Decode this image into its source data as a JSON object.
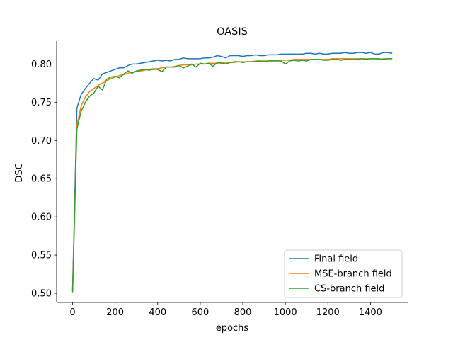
{
  "chart_data": {
    "type": "line",
    "title": "OASIS",
    "xlabel": "epochs",
    "ylabel": "DSC",
    "xlim": [
      -75,
      1575
    ],
    "ylim": [
      0.488,
      0.83
    ],
    "xticks": [
      0,
      200,
      400,
      600,
      800,
      1000,
      1200,
      1400
    ],
    "yticks": [
      0.5,
      0.55,
      0.6,
      0.65,
      0.7,
      0.75,
      0.8
    ],
    "ytick_labels": [
      "0.50",
      "0.55",
      "0.60",
      "0.65",
      "0.70",
      "0.75",
      "0.80"
    ],
    "grid": false,
    "legend_position": "lower-right",
    "series": [
      {
        "name": "Final field",
        "color": "#1f77b4",
        "x": [
          0,
          20,
          40,
          60,
          80,
          100,
          120,
          140,
          160,
          180,
          200,
          220,
          240,
          260,
          280,
          300,
          320,
          340,
          360,
          380,
          400,
          420,
          440,
          460,
          480,
          500,
          520,
          540,
          560,
          580,
          600,
          620,
          640,
          660,
          680,
          700,
          720,
          740,
          760,
          780,
          800,
          820,
          840,
          860,
          880,
          900,
          920,
          940,
          960,
          980,
          1000,
          1020,
          1040,
          1060,
          1080,
          1100,
          1120,
          1140,
          1160,
          1180,
          1200,
          1220,
          1240,
          1260,
          1280,
          1300,
          1320,
          1340,
          1360,
          1380,
          1400,
          1420,
          1440,
          1460,
          1480,
          1500
        ],
        "y": [
          0.505,
          0.742,
          0.76,
          0.768,
          0.775,
          0.781,
          0.779,
          0.787,
          0.789,
          0.791,
          0.793,
          0.795,
          0.795,
          0.798,
          0.8,
          0.8,
          0.801,
          0.802,
          0.803,
          0.804,
          0.805,
          0.804,
          0.805,
          0.804,
          0.806,
          0.806,
          0.808,
          0.807,
          0.807,
          0.807,
          0.807,
          0.808,
          0.808,
          0.809,
          0.811,
          0.81,
          0.808,
          0.811,
          0.811,
          0.811,
          0.81,
          0.811,
          0.811,
          0.812,
          0.811,
          0.811,
          0.812,
          0.812,
          0.812,
          0.813,
          0.813,
          0.813,
          0.813,
          0.813,
          0.813,
          0.814,
          0.814,
          0.813,
          0.814,
          0.813,
          0.813,
          0.814,
          0.814,
          0.814,
          0.815,
          0.814,
          0.814,
          0.815,
          0.815,
          0.814,
          0.815,
          0.813,
          0.813,
          0.815,
          0.815,
          0.814
        ]
      },
      {
        "name": "MSE-branch field",
        "color": "#ff7f0e",
        "x": [
          0,
          20,
          40,
          60,
          80,
          100,
          120,
          140,
          160,
          180,
          200,
          220,
          240,
          260,
          280,
          300,
          320,
          340,
          360,
          380,
          400,
          420,
          440,
          460,
          480,
          500,
          520,
          540,
          560,
          580,
          600,
          620,
          640,
          660,
          680,
          700,
          720,
          740,
          760,
          780,
          800,
          820,
          840,
          860,
          880,
          900,
          920,
          940,
          960,
          980,
          1000,
          1020,
          1040,
          1060,
          1080,
          1100,
          1120,
          1140,
          1160,
          1180,
          1200,
          1220,
          1240,
          1260,
          1280,
          1300,
          1320,
          1340,
          1360,
          1380,
          1400,
          1420,
          1440,
          1460,
          1480,
          1500
        ],
        "y": [
          0.503,
          0.72,
          0.745,
          0.757,
          0.764,
          0.768,
          0.772,
          0.775,
          0.778,
          0.781,
          0.783,
          0.785,
          0.786,
          0.788,
          0.789,
          0.79,
          0.791,
          0.792,
          0.793,
          0.794,
          0.794,
          0.795,
          0.796,
          0.796,
          0.797,
          0.798,
          0.799,
          0.799,
          0.799,
          0.8,
          0.8,
          0.8,
          0.801,
          0.801,
          0.801,
          0.802,
          0.801,
          0.802,
          0.802,
          0.803,
          0.803,
          0.803,
          0.803,
          0.804,
          0.804,
          0.804,
          0.804,
          0.805,
          0.805,
          0.805,
          0.805,
          0.805,
          0.806,
          0.806,
          0.806,
          0.806,
          0.806,
          0.806,
          0.806,
          0.806,
          0.806,
          0.807,
          0.807,
          0.807,
          0.807,
          0.807,
          0.807,
          0.807,
          0.807,
          0.807,
          0.807,
          0.807,
          0.806,
          0.807,
          0.807,
          0.807
        ]
      },
      {
        "name": "CS-branch field",
        "color": "#2ca02c",
        "x": [
          0,
          20,
          40,
          60,
          80,
          100,
          120,
          140,
          160,
          180,
          200,
          220,
          240,
          260,
          280,
          300,
          320,
          340,
          360,
          380,
          400,
          420,
          440,
          460,
          480,
          500,
          520,
          540,
          560,
          580,
          600,
          620,
          640,
          660,
          680,
          700,
          720,
          740,
          760,
          780,
          800,
          820,
          840,
          860,
          880,
          900,
          920,
          940,
          960,
          980,
          1000,
          1020,
          1040,
          1060,
          1080,
          1100,
          1120,
          1140,
          1160,
          1180,
          1200,
          1220,
          1240,
          1260,
          1280,
          1300,
          1320,
          1340,
          1360,
          1380,
          1400,
          1420,
          1440,
          1460,
          1480,
          1500
        ],
        "y": [
          0.502,
          0.715,
          0.738,
          0.75,
          0.758,
          0.762,
          0.771,
          0.766,
          0.78,
          0.783,
          0.784,
          0.782,
          0.787,
          0.791,
          0.788,
          0.791,
          0.792,
          0.793,
          0.792,
          0.793,
          0.793,
          0.79,
          0.796,
          0.796,
          0.796,
          0.798,
          0.795,
          0.797,
          0.8,
          0.796,
          0.801,
          0.8,
          0.801,
          0.797,
          0.802,
          0.801,
          0.8,
          0.802,
          0.803,
          0.803,
          0.802,
          0.803,
          0.803,
          0.803,
          0.804,
          0.803,
          0.804,
          0.804,
          0.804,
          0.804,
          0.8,
          0.804,
          0.805,
          0.804,
          0.805,
          0.804,
          0.806,
          0.806,
          0.806,
          0.805,
          0.805,
          0.806,
          0.806,
          0.805,
          0.806,
          0.806,
          0.806,
          0.806,
          0.807,
          0.806,
          0.807,
          0.807,
          0.807,
          0.806,
          0.807,
          0.807
        ]
      }
    ]
  }
}
